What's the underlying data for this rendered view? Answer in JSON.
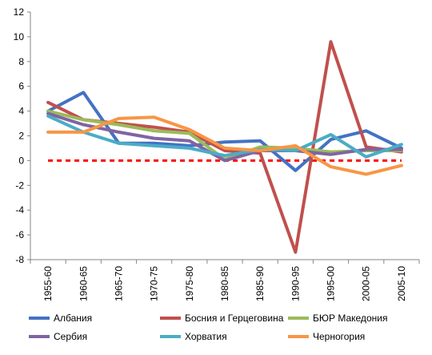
{
  "chart_data": {
    "type": "line",
    "title": "",
    "xlabel": "",
    "ylabel": "",
    "categories": [
      "1955-60",
      "1960-65",
      "1965-70",
      "1970-75",
      "1975-80",
      "1980-85",
      "1985-90",
      "1990-95",
      "1995-00",
      "2000-05",
      "2005-10"
    ],
    "ylim": [
      -8,
      12
    ],
    "yticks": [
      -8,
      -6,
      -4,
      -2,
      0,
      2,
      4,
      6,
      8,
      10,
      12
    ],
    "grid": false,
    "legend_position": "bottom",
    "reference_line": {
      "value": 0,
      "color": "#FF0000",
      "style": "dashed"
    },
    "series": [
      {
        "name": "Албания",
        "color": "#4472C4",
        "values": [
          4.0,
          5.5,
          1.4,
          1.4,
          1.2,
          1.5,
          1.6,
          -0.8,
          1.7,
          2.4,
          1.0
        ]
      },
      {
        "name": "Босния и Герцеговина",
        "color": "#C0504D",
        "values": [
          4.7,
          3.3,
          3.0,
          2.7,
          2.3,
          0.8,
          0.6,
          -7.4,
          9.6,
          1.1,
          0.7
        ]
      },
      {
        "name": "БЮР Македония",
        "color": "#9BBB59",
        "values": [
          4.0,
          3.3,
          2.9,
          2.4,
          2.2,
          0.1,
          1.1,
          1.0,
          0.7,
          0.8,
          0.8
        ]
      },
      {
        "name": "Сербия",
        "color": "#8064A2",
        "values": [
          3.8,
          2.9,
          2.3,
          1.8,
          1.6,
          0.0,
          0.8,
          0.8,
          0.5,
          0.9,
          0.9
        ]
      },
      {
        "name": "Хорватия",
        "color": "#4BACC6",
        "values": [
          3.6,
          2.3,
          1.4,
          1.2,
          1.0,
          0.4,
          0.9,
          0.8,
          2.1,
          0.3,
          1.3
        ]
      },
      {
        "name": "Черногория",
        "color": "#F79646",
        "values": [
          2.3,
          2.3,
          3.4,
          3.5,
          2.5,
          1.0,
          0.8,
          1.2,
          -0.5,
          -1.1,
          -0.4
        ]
      }
    ]
  }
}
